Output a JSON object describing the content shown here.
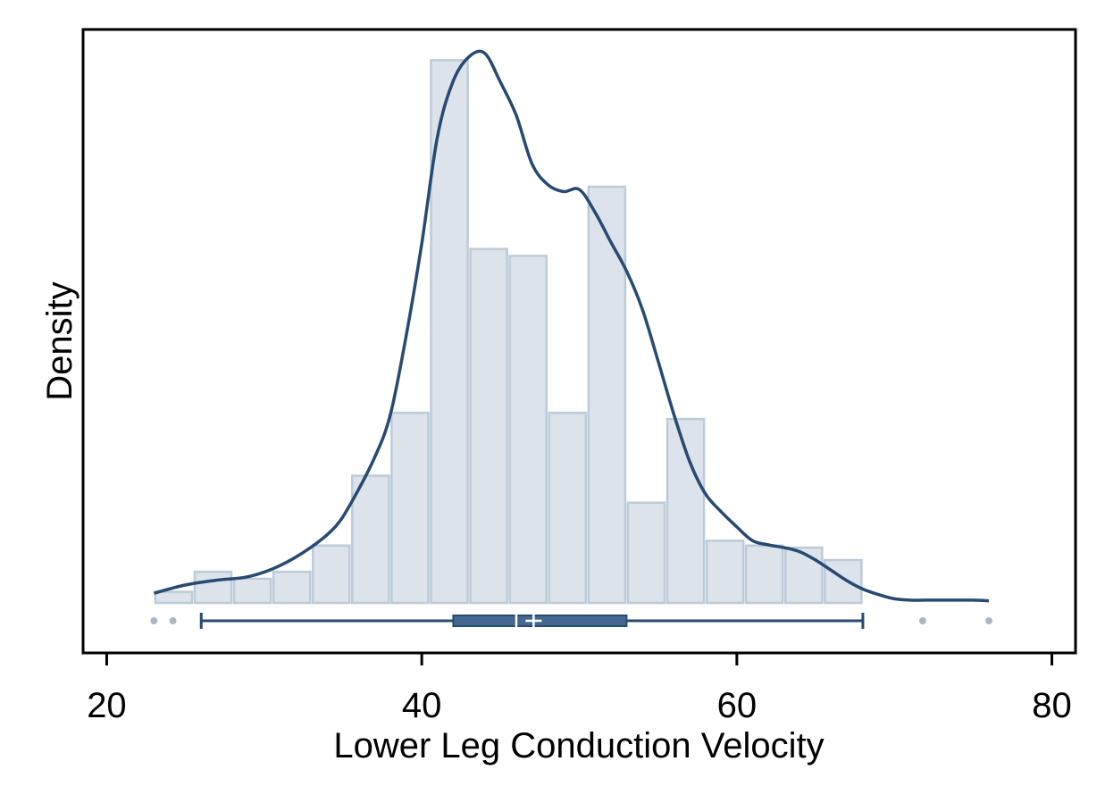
{
  "chart_data": {
    "type": "histogram",
    "xlabel": "Lower Leg Conduction Velocity",
    "ylabel": "Density",
    "xlim": [
      18.5,
      81.5
    ],
    "ylim": [
      0,
      0.0792
    ],
    "x_ticks": [
      20,
      40,
      60,
      80
    ],
    "x_tick_labels": [
      "20",
      "40",
      "60",
      "80"
    ],
    "y_ticks_shown": false,
    "grid": false,
    "legend": "none",
    "colors": {
      "bar_fill": "#dde3eb",
      "bar_edge": "#bccbd8",
      "line": "#264a72",
      "box_fill": "#44688f",
      "outlier": "#a9b8c6",
      "frame": "#000000"
    },
    "histogram": {
      "bin_edges": [
        23,
        25.5,
        28,
        30.5,
        33,
        35.5,
        38,
        40.5,
        43,
        45.5,
        48,
        50.5,
        53,
        55.5,
        58,
        60.5,
        63,
        65.5,
        68
      ],
      "densities": [
        0.0016,
        0.0045,
        0.0035,
        0.0045,
        0.0083,
        0.0184,
        0.0275,
        0.0785,
        0.0512,
        0.0502,
        0.0275,
        0.0602,
        0.0145,
        0.0266,
        0.009,
        0.0083,
        0.008,
        0.0062
      ]
    },
    "kde": {
      "x": [
        23,
        25,
        27,
        29,
        31,
        33,
        34.5,
        35.5,
        37,
        38,
        39,
        40,
        41,
        42,
        43,
        44,
        45,
        46,
        47,
        48,
        49,
        50,
        51,
        52,
        53,
        54,
        55,
        56,
        57,
        58,
        59,
        60,
        61,
        62,
        63,
        64,
        65,
        66,
        67,
        68,
        69,
        70,
        71,
        72,
        73,
        74,
        75,
        76
      ],
      "y": [
        0.0014,
        0.0026,
        0.0033,
        0.0038,
        0.0054,
        0.0081,
        0.011,
        0.0144,
        0.021,
        0.0272,
        0.0385,
        0.052,
        0.0675,
        0.0755,
        0.079,
        0.0795,
        0.0753,
        0.0705,
        0.0635,
        0.0605,
        0.0595,
        0.0598,
        0.0565,
        0.0522,
        0.048,
        0.0425,
        0.035,
        0.0273,
        0.0205,
        0.0158,
        0.0132,
        0.011,
        0.009,
        0.0084,
        0.008,
        0.0074,
        0.0062,
        0.0047,
        0.0032,
        0.002,
        0.0012,
        0.0006,
        0.0004,
        0.0004,
        0.0004,
        0.0004,
        0.0004,
        0.0003
      ]
    },
    "boxplot": {
      "whisker_low": 26,
      "q1": 42,
      "median": 46,
      "mean": 47.1,
      "q3": 53,
      "whisker_high": 68,
      "outliers": [
        23,
        24.2,
        71.8,
        76
      ]
    }
  }
}
